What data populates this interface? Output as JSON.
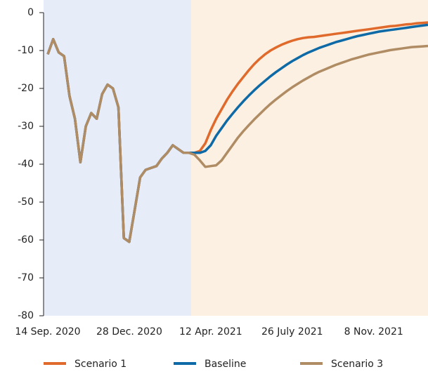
{
  "chart_data": {
    "type": "line",
    "categories": [
      "14 Sep. 2020",
      null,
      null,
      null,
      null,
      null,
      null,
      null,
      null,
      null,
      null,
      null,
      null,
      null,
      null,
      "28 Dec. 2020",
      null,
      null,
      null,
      null,
      null,
      null,
      null,
      null,
      null,
      null,
      null,
      null,
      null,
      null,
      "12 Apr. 2021",
      null,
      null,
      null,
      null,
      null,
      null,
      null,
      null,
      null,
      null,
      null,
      null,
      null,
      null,
      "26 July 2021",
      null,
      null,
      null,
      null,
      null,
      null,
      null,
      null,
      null,
      null,
      null,
      null,
      null,
      null,
      "8 Nov. 2021",
      null,
      null,
      null,
      null,
      null,
      null,
      null,
      null,
      null,
      null
    ],
    "series": [
      {
        "name": "Scenario 1",
        "color": "#e06a2c",
        "values": [
          -11,
          -7,
          -10.5,
          -11.5,
          -22,
          -28,
          -39.5,
          -30,
          -26.5,
          -28,
          -21.5,
          -19,
          -20,
          -25,
          -59.5,
          -60.5,
          -52,
          -43.5,
          -41.5,
          -41,
          -40.5,
          -38.5,
          -37,
          -35,
          -36,
          -37,
          -37,
          -37,
          -36.5,
          -34.5,
          -31,
          -28,
          -25.5,
          -23,
          -20.8,
          -18.8,
          -17,
          -15.2,
          -13.6,
          -12.2,
          -11,
          -10,
          -9.2,
          -8.5,
          -7.9,
          -7.4,
          -7,
          -6.7,
          -6.5,
          -6.4,
          -6.2,
          -6,
          -5.8,
          -5.6,
          -5.4,
          -5.2,
          -5,
          -4.8,
          -4.6,
          -4.4,
          -4.2,
          -4,
          -3.8,
          -3.6,
          -3.5,
          -3.3,
          -3.1,
          -3,
          -2.8,
          -2.7,
          -2.6
        ]
      },
      {
        "name": "Baseline",
        "color": "#0e6aa6",
        "values": [
          -11,
          -7,
          -10.5,
          -11.5,
          -22,
          -28,
          -39.5,
          -30,
          -26.5,
          -28,
          -21.5,
          -19,
          -20,
          -25,
          -59.5,
          -60.5,
          -52,
          -43.5,
          -41.5,
          -41,
          -40.5,
          -38.5,
          -37,
          -35,
          -36,
          -37,
          -37,
          -37,
          -37,
          -36.5,
          -35,
          -32.5,
          -30.5,
          -28.5,
          -26.7,
          -25,
          -23.4,
          -21.9,
          -20.5,
          -19.2,
          -18,
          -16.8,
          -15.7,
          -14.7,
          -13.7,
          -12.8,
          -12,
          -11.2,
          -10.5,
          -9.9,
          -9.3,
          -8.8,
          -8.3,
          -7.8,
          -7.4,
          -7,
          -6.6,
          -6.2,
          -5.9,
          -5.6,
          -5.3,
          -5,
          -4.8,
          -4.6,
          -4.4,
          -4.2,
          -4,
          -3.8,
          -3.6,
          -3.4,
          -3.2
        ]
      },
      {
        "name": "Scenario 3",
        "color": "#b08c64",
        "values": [
          -11,
          -7,
          -10.5,
          -11.5,
          -22,
          -28,
          -39.5,
          -30,
          -26.5,
          -28,
          -21.5,
          -19,
          -20,
          -25,
          -59.5,
          -60.5,
          -52,
          -43.5,
          -41.5,
          -41,
          -40.5,
          -38.5,
          -37,
          -35,
          -36,
          -37,
          -37,
          -37.5,
          -39,
          -40.7,
          -40.5,
          -40.3,
          -39,
          -37,
          -35,
          -33,
          -31.3,
          -29.7,
          -28.2,
          -26.8,
          -25.4,
          -24.1,
          -22.9,
          -21.8,
          -20.7,
          -19.7,
          -18.8,
          -17.9,
          -17.1,
          -16.3,
          -15.6,
          -15,
          -14.4,
          -13.8,
          -13.3,
          -12.8,
          -12.3,
          -11.9,
          -11.5,
          -11.1,
          -10.8,
          -10.5,
          -10.2,
          -9.9,
          -9.7,
          -9.5,
          -9.3,
          -9.1,
          -9,
          -8.9,
          -8.8
        ]
      }
    ],
    "ylim": [
      -80,
      0
    ],
    "yticks": [
      0,
      -10,
      -20,
      -30,
      -40,
      -50,
      -60,
      -70,
      -80
    ],
    "legend": "bottom"
  }
}
